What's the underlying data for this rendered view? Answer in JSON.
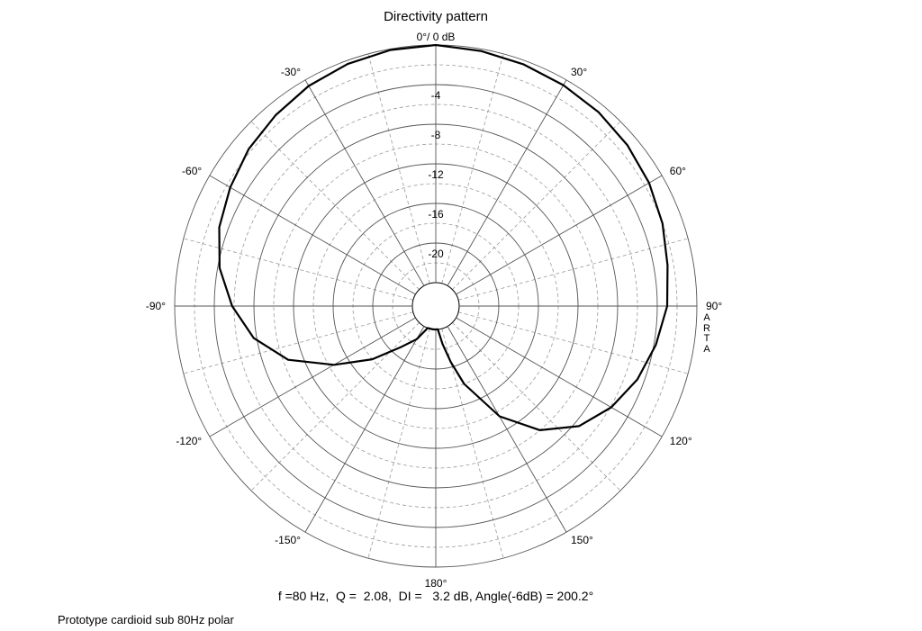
{
  "chart_data": {
    "type": "polar",
    "title": "Directivity pattern",
    "radial_label": "0°/ 0 dB",
    "radial_ticks": [
      {
        "value": -4,
        "label": "-4"
      },
      {
        "value": -8,
        "label": "-8"
      },
      {
        "value": -12,
        "label": "-12"
      },
      {
        "value": -16,
        "label": "-16"
      },
      {
        "value": -20,
        "label": "-20"
      }
    ],
    "radial_range_db": [
      -24,
      0
    ],
    "angle_ticks": [
      {
        "angle": 0,
        "label": ""
      },
      {
        "angle": 30,
        "label": "30°"
      },
      {
        "angle": 60,
        "label": "60°"
      },
      {
        "angle": 90,
        "label": "90°"
      },
      {
        "angle": 120,
        "label": "120°"
      },
      {
        "angle": 150,
        "label": "150°"
      },
      {
        "angle": 180,
        "label": "180°"
      },
      {
        "angle": -150,
        "label": "-150°"
      },
      {
        "angle": -120,
        "label": "-120°"
      },
      {
        "angle": -90,
        "label": "-90°"
      },
      {
        "angle": -60,
        "label": "-60°"
      },
      {
        "angle": -30,
        "label": "-30°"
      }
    ],
    "grid": true,
    "series": [
      {
        "color": "#000000",
        "points": [
          {
            "angle": 0,
            "db": 0.0
          },
          {
            "angle": 10,
            "db": -0.2
          },
          {
            "angle": 20,
            "db": -0.4
          },
          {
            "angle": 30,
            "db": -0.6
          },
          {
            "angle": 40,
            "db": -0.8
          },
          {
            "angle": 50,
            "db": -1.1
          },
          {
            "angle": 60,
            "db": -1.5
          },
          {
            "angle": 70,
            "db": -2.0
          },
          {
            "angle": 80,
            "db": -2.6
          },
          {
            "angle": 90,
            "db": -3.0
          },
          {
            "angle": 100,
            "db": -3.8
          },
          {
            "angle": 110,
            "db": -4.7
          },
          {
            "angle": 120,
            "db": -5.9
          },
          {
            "angle": 130,
            "db": -7.5
          },
          {
            "angle": 140,
            "db": -10.0
          },
          {
            "angle": 150,
            "db": -13.5
          },
          {
            "angle": 160,
            "db": -18.0
          },
          {
            "angle": 165,
            "db": -20.5
          },
          {
            "angle": 170,
            "db": -22.5
          },
          {
            "angle": 175,
            "db": -24.0
          },
          {
            "angle": 180,
            "db": -24.0
          },
          {
            "angle": 185,
            "db": -24.0
          },
          {
            "angle": 190,
            "db": -24.0
          },
          {
            "angle": 200,
            "db": -24.0
          },
          {
            "angle": 210,
            "db": -22.5
          },
          {
            "angle": 220,
            "db": -21.0
          },
          {
            "angle": 230,
            "db": -18.0
          },
          {
            "angle": 240,
            "db": -14.5
          },
          {
            "angle": 250,
            "db": -10.5
          },
          {
            "angle": 260,
            "db": -7.7
          },
          {
            "angle": 270,
            "db": -5.8
          },
          {
            "angle": 280,
            "db": -4.2
          },
          {
            "angle": 290,
            "db": -3.1
          },
          {
            "angle": 300,
            "db": -2.4
          },
          {
            "angle": 310,
            "db": -1.7
          },
          {
            "angle": 320,
            "db": -1.2
          },
          {
            "angle": 330,
            "db": -0.7
          },
          {
            "angle": 340,
            "db": -0.35
          },
          {
            "angle": 350,
            "db": -0.1
          },
          {
            "angle": 360,
            "db": 0.0
          }
        ]
      }
    ]
  },
  "info_line": "f =80 Hz,  Q =  2.08,  DI =   3.2 dB, Angle(-6dB) = 200.2°",
  "caption": "Prototype cardioid sub 80Hz polar",
  "watermark": "ARTA"
}
